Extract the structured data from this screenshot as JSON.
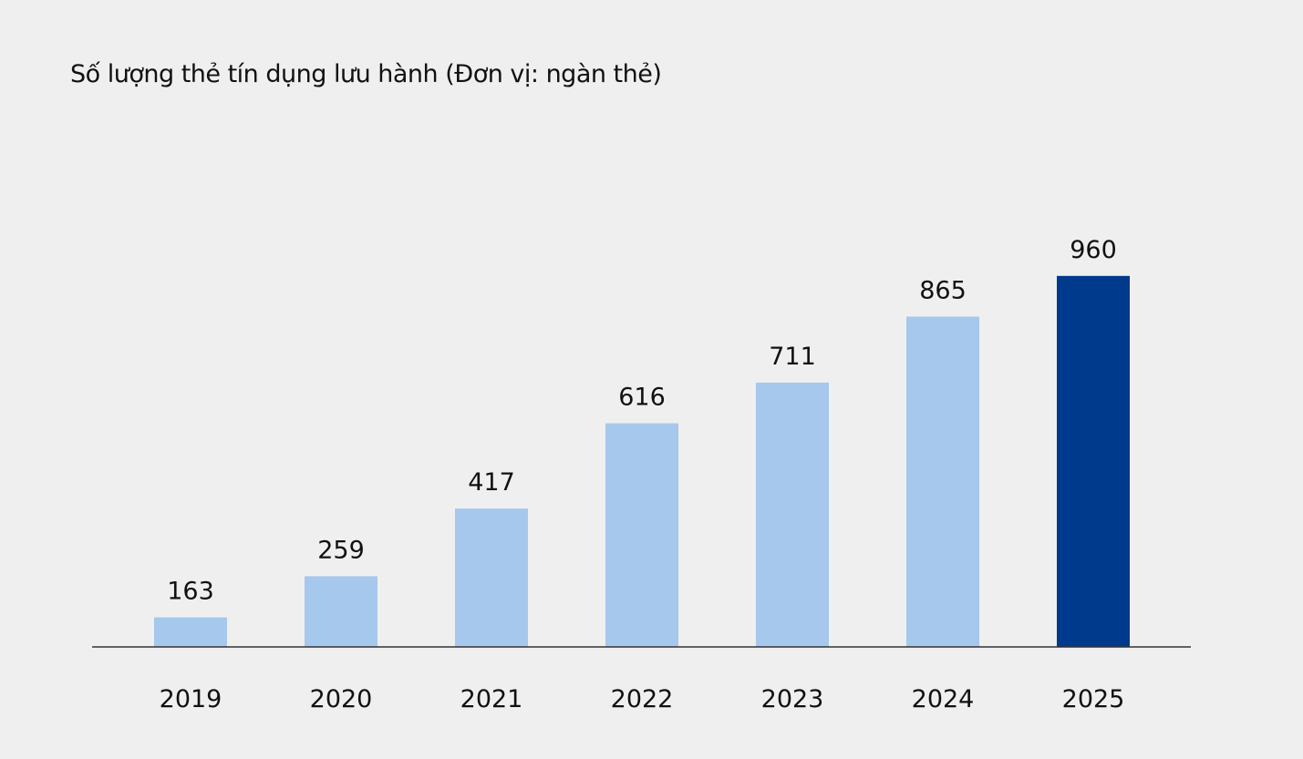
{
  "chart_data": {
    "type": "bar",
    "title": "Số lượng thẻ tín dụng lưu hành (Đơn vị: ngàn thẻ)",
    "categories": [
      "2019",
      "2020",
      "2021",
      "2022",
      "2023",
      "2024",
      "2025"
    ],
    "values": [
      163,
      259,
      417,
      616,
      711,
      865,
      960
    ],
    "xlabel": "",
    "ylabel": "",
    "ylim": [
      94,
      1100
    ],
    "grid": false,
    "colors": {
      "default": "#a5c8ec",
      "highlight": "#003a8c",
      "axis": "#333333",
      "background": "#efefef"
    },
    "highlight_category": "2025"
  }
}
